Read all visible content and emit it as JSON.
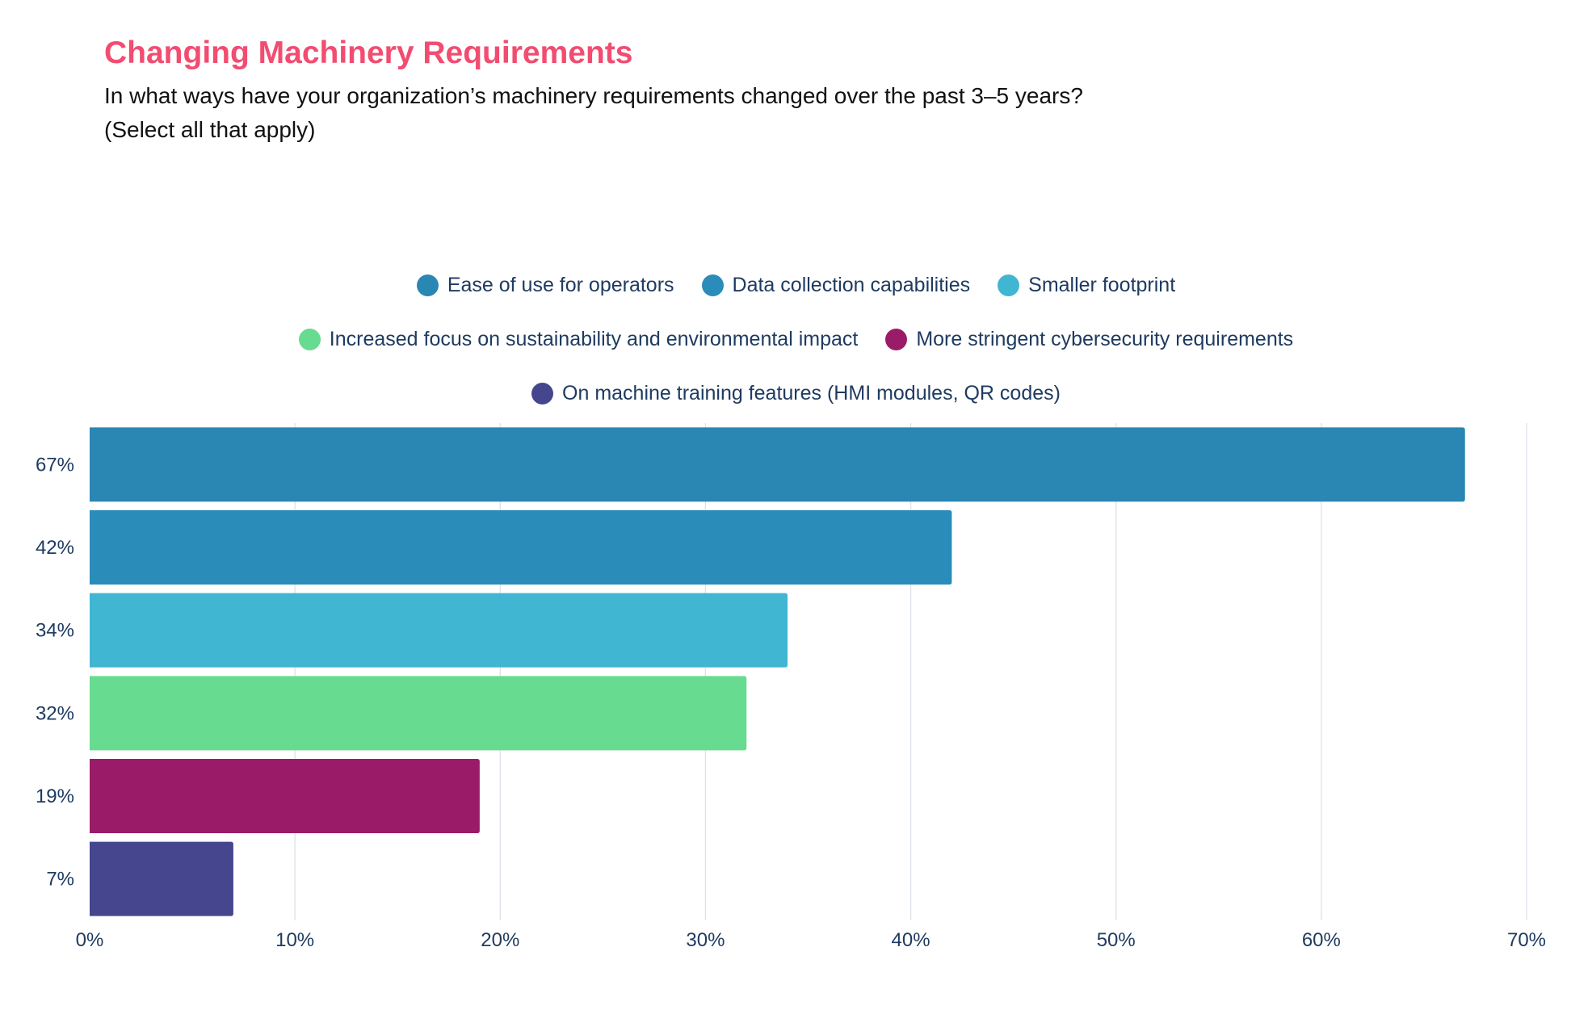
{
  "chart_data": {
    "type": "bar",
    "orientation": "horizontal",
    "title": "Changing Machinery Requirements",
    "subtitle": [
      "In what ways have your organization’s machinery requirements changed over the past 3–5 years?",
      "(Select all that apply)"
    ],
    "categories": [
      "Ease of use for operators",
      "Data collection capabilities",
      "Smaller footprint",
      "Increased focus on sustainability and environmental impact",
      "More stringent cybersecurity requirements",
      "On machine training features (HMI modules, QR codes)"
    ],
    "values": [
      67,
      42,
      34,
      32,
      19,
      7
    ],
    "value_labels": [
      "67%",
      "42%",
      "34%",
      "32%",
      "19%",
      "7%"
    ],
    "colors": [
      "#2a86b2",
      "#2a8cb8",
      "#41b6d2",
      "#67db8f",
      "#9a1c68",
      "#45468d"
    ],
    "xlim": [
      0,
      70
    ],
    "x_ticks": [
      "0%",
      "10%",
      "20%",
      "30%",
      "40%",
      "50%",
      "60%",
      "70%"
    ],
    "grid": "vertical",
    "legend_position": "top",
    "legend_rows": [
      [
        0,
        1,
        2
      ],
      [
        3,
        4
      ],
      [
        5
      ]
    ]
  }
}
